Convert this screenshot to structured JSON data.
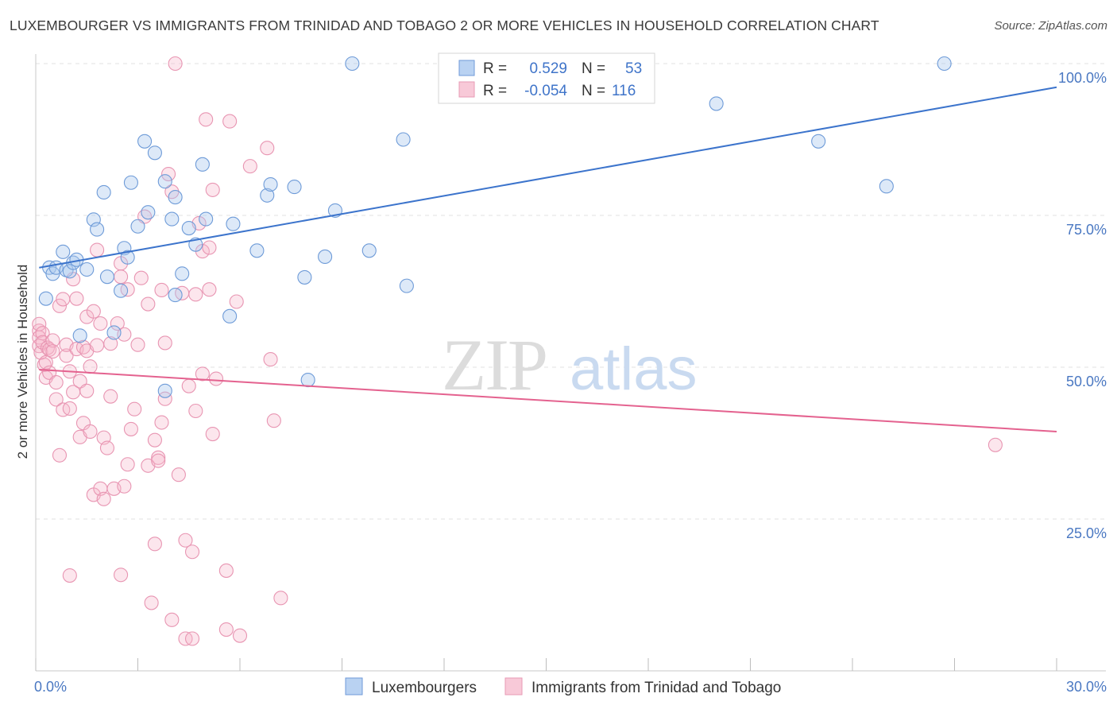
{
  "title": "LUXEMBOURGER VS IMMIGRANTS FROM TRINIDAD AND TOBAGO 2 OR MORE VEHICLES IN HOUSEHOLD CORRELATION CHART",
  "source": "Source: ZipAtlas.com",
  "watermark": {
    "zip": "ZIP",
    "atlas": "atlas"
  },
  "colors": {
    "blue": "#4a7fd4",
    "blue_fill": "#aac8ee",
    "pink": "#e4628f",
    "pink_fill": "#f5b6ca",
    "tick": "#4a78c2"
  },
  "legend": {
    "r_label": "R =",
    "n_label": "N =",
    "rows": [
      {
        "r": "0.529",
        "n": "53"
      },
      {
        "r": "-0.054",
        "n": "116"
      }
    ]
  },
  "chart_data": {
    "type": "scatter",
    "title": "LUXEMBOURGER VS IMMIGRANTS FROM TRINIDAD AND TOBAGO 2 OR MORE VEHICLES IN HOUSEHOLD CORRELATION CHART",
    "xlabel": "",
    "ylabel": "2 or more Vehicles in Household",
    "xlim": [
      0,
      30
    ],
    "ylim": [
      0,
      100
    ],
    "x_ticks": [
      "0.0%",
      "30.0%"
    ],
    "y_ticks": [
      "25.0%",
      "50.0%",
      "75.0%",
      "100.0%"
    ],
    "grid": true,
    "legend_position": "top-center",
    "series": [
      {
        "name": "Luxembourgers",
        "color": "#4a7fd4",
        "trend": [
          [
            0.1,
            66.4
          ],
          [
            30,
            96.1
          ]
        ],
        "points": [
          [
            0.3,
            61.3
          ],
          [
            0.4,
            66.4
          ],
          [
            0.5,
            65.4
          ],
          [
            0.6,
            66.4
          ],
          [
            0.8,
            69.0
          ],
          [
            0.9,
            66.0
          ],
          [
            1.0,
            65.8
          ],
          [
            1.1,
            67.2
          ],
          [
            1.2,
            67.7
          ],
          [
            1.3,
            55.2
          ],
          [
            1.5,
            66.1
          ],
          [
            1.7,
            74.3
          ],
          [
            1.8,
            72.7
          ],
          [
            2.0,
            78.8
          ],
          [
            2.1,
            64.9
          ],
          [
            2.3,
            55.7
          ],
          [
            2.5,
            62.6
          ],
          [
            2.6,
            69.6
          ],
          [
            2.7,
            68.1
          ],
          [
            2.8,
            80.4
          ],
          [
            3.0,
            73.2
          ],
          [
            3.2,
            87.2
          ],
          [
            3.3,
            75.5
          ],
          [
            3.5,
            85.3
          ],
          [
            3.8,
            80.6
          ],
          [
            3.8,
            46.1
          ],
          [
            4.0,
            74.4
          ],
          [
            4.1,
            78.0
          ],
          [
            4.1,
            61.9
          ],
          [
            4.3,
            65.4
          ],
          [
            4.5,
            72.9
          ],
          [
            4.7,
            70.2
          ],
          [
            4.9,
            83.4
          ],
          [
            5.0,
            74.4
          ],
          [
            5.7,
            58.4
          ],
          [
            5.8,
            73.6
          ],
          [
            6.5,
            69.2
          ],
          [
            6.8,
            78.3
          ],
          [
            6.9,
            80.1
          ],
          [
            7.6,
            79.7
          ],
          [
            7.9,
            64.8
          ],
          [
            8.0,
            47.9
          ],
          [
            8.5,
            68.2
          ],
          [
            8.8,
            75.8
          ],
          [
            9.3,
            100.0
          ],
          [
            9.8,
            69.2
          ],
          [
            10.8,
            87.5
          ],
          [
            10.9,
            63.4
          ],
          [
            20.0,
            93.4
          ],
          [
            23.0,
            87.2
          ],
          [
            25.0,
            79.8
          ],
          [
            26.7,
            100.0
          ]
        ]
      },
      {
        "name": "Immigrants from Trinidad and Tobago",
        "color": "#e4628f",
        "trend": [
          [
            0.1,
            49.6
          ],
          [
            30,
            39.4
          ]
        ],
        "points": [
          [
            0.1,
            56.0
          ],
          [
            0.1,
            54.9
          ],
          [
            0.1,
            53.5
          ],
          [
            0.1,
            57.1
          ],
          [
            0.15,
            52.4
          ],
          [
            0.2,
            55.6
          ],
          [
            0.2,
            54.1
          ],
          [
            0.25,
            50.4
          ],
          [
            0.3,
            48.3
          ],
          [
            0.3,
            50.8
          ],
          [
            0.35,
            53.2
          ],
          [
            0.4,
            52.9
          ],
          [
            0.4,
            49.1
          ],
          [
            0.5,
            54.4
          ],
          [
            0.5,
            52.6
          ],
          [
            0.6,
            47.5
          ],
          [
            0.6,
            44.7
          ],
          [
            0.7,
            60.1
          ],
          [
            0.7,
            35.5
          ],
          [
            0.8,
            43.0
          ],
          [
            0.8,
            61.2
          ],
          [
            0.9,
            51.9
          ],
          [
            0.9,
            53.7
          ],
          [
            1.0,
            49.3
          ],
          [
            1.0,
            43.2
          ],
          [
            1.0,
            15.7
          ],
          [
            1.1,
            45.9
          ],
          [
            1.1,
            64.5
          ],
          [
            1.2,
            61.3
          ],
          [
            1.2,
            53.0
          ],
          [
            1.3,
            38.5
          ],
          [
            1.3,
            47.7
          ],
          [
            1.4,
            53.3
          ],
          [
            1.4,
            40.8
          ],
          [
            1.5,
            58.3
          ],
          [
            1.5,
            46.1
          ],
          [
            1.5,
            52.7
          ],
          [
            1.6,
            50.1
          ],
          [
            1.6,
            39.4
          ],
          [
            1.7,
            59.2
          ],
          [
            1.7,
            29.0
          ],
          [
            1.8,
            69.3
          ],
          [
            1.8,
            53.6
          ],
          [
            1.9,
            57.2
          ],
          [
            1.9,
            30.0
          ],
          [
            2.0,
            38.4
          ],
          [
            2.0,
            28.3
          ],
          [
            2.1,
            36.7
          ],
          [
            2.2,
            53.9
          ],
          [
            2.2,
            45.2
          ],
          [
            2.3,
            30.0
          ],
          [
            2.4,
            57.2
          ],
          [
            2.5,
            67.1
          ],
          [
            2.5,
            64.9
          ],
          [
            2.5,
            15.8
          ],
          [
            2.6,
            55.4
          ],
          [
            2.6,
            30.4
          ],
          [
            2.7,
            62.8
          ],
          [
            2.7,
            34.0
          ],
          [
            2.8,
            39.8
          ],
          [
            2.9,
            43.1
          ],
          [
            3.0,
            53.7
          ],
          [
            3.1,
            64.7
          ],
          [
            3.2,
            74.8
          ],
          [
            3.3,
            60.4
          ],
          [
            3.3,
            33.8
          ],
          [
            3.4,
            11.2
          ],
          [
            3.5,
            38.0
          ],
          [
            3.5,
            20.9
          ],
          [
            3.6,
            35.1
          ],
          [
            3.6,
            34.6
          ],
          [
            3.7,
            62.7
          ],
          [
            3.7,
            40.9
          ],
          [
            3.8,
            54.0
          ],
          [
            3.8,
            44.8
          ],
          [
            3.9,
            81.8
          ],
          [
            4.0,
            78.9
          ],
          [
            4.0,
            8.4
          ],
          [
            4.1,
            100.0
          ],
          [
            4.2,
            32.3
          ],
          [
            4.3,
            62.2
          ],
          [
            4.4,
            21.5
          ],
          [
            4.4,
            5.3
          ],
          [
            4.5,
            46.9
          ],
          [
            4.6,
            5.3
          ],
          [
            4.6,
            19.6
          ],
          [
            4.7,
            42.8
          ],
          [
            4.7,
            62.0
          ],
          [
            4.8,
            73.7
          ],
          [
            4.9,
            48.9
          ],
          [
            4.9,
            69.1
          ],
          [
            5.0,
            90.8
          ],
          [
            5.1,
            62.8
          ],
          [
            5.1,
            69.7
          ],
          [
            5.2,
            79.2
          ],
          [
            5.2,
            39.0
          ],
          [
            5.3,
            48.1
          ],
          [
            5.6,
            16.5
          ],
          [
            5.6,
            6.8
          ],
          [
            5.7,
            90.5
          ],
          [
            5.9,
            60.8
          ],
          [
            6.0,
            5.8
          ],
          [
            6.3,
            83.1
          ],
          [
            6.8,
            86.1
          ],
          [
            6.9,
            51.3
          ],
          [
            7.0,
            41.2
          ],
          [
            7.2,
            12.0
          ],
          [
            28.2,
            37.2
          ]
        ]
      }
    ]
  }
}
